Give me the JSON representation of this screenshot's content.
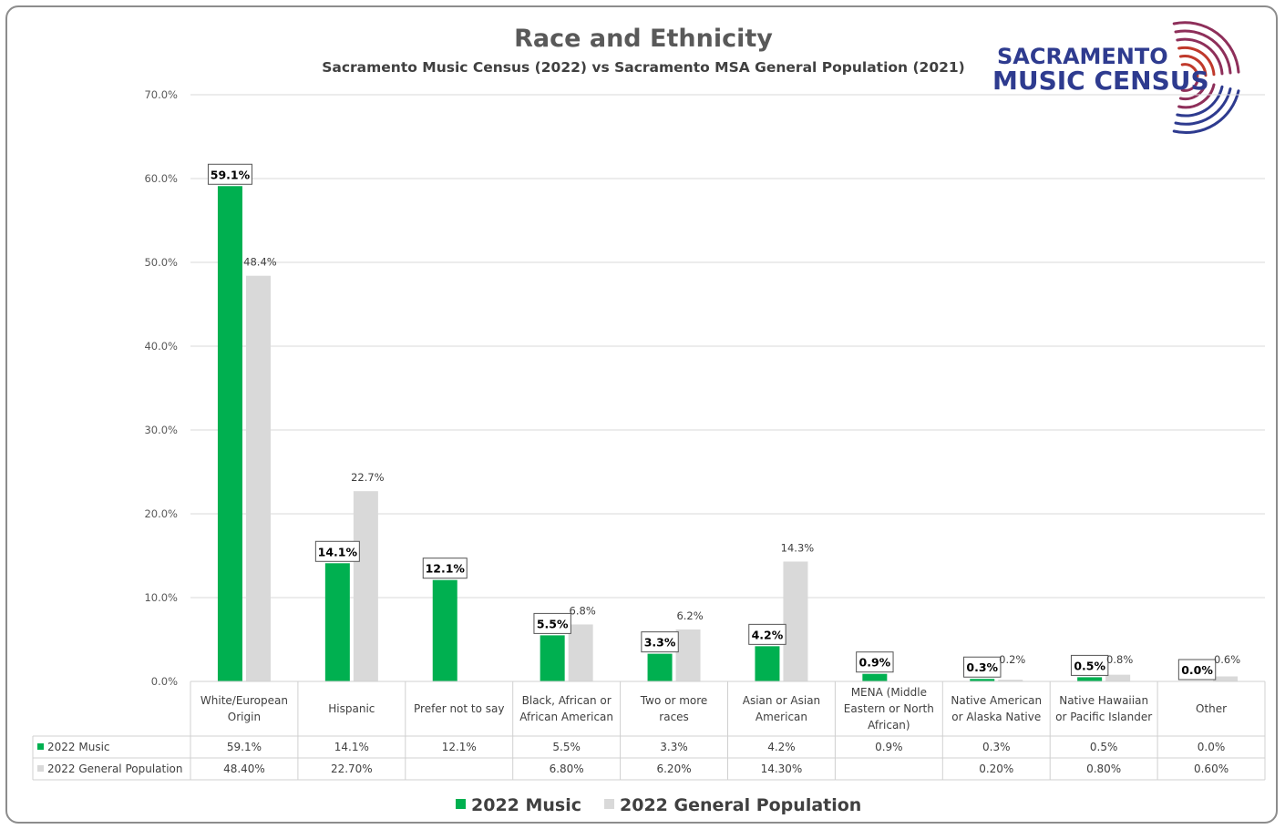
{
  "chart_data": {
    "type": "bar",
    "title": "Race and Ethnicity",
    "subtitle": "Sacramento Music Census (2022) vs Sacramento MSA General Population (2021)",
    "ylim": [
      0,
      70
    ],
    "yticks": [
      "0.0%",
      "10.0%",
      "20.0%",
      "30.0%",
      "40.0%",
      "50.0%",
      "60.0%",
      "70.0%"
    ],
    "grid": true,
    "legend_position": "bottom",
    "categories": [
      [
        "White/European",
        "Origin"
      ],
      [
        "Hispanic"
      ],
      [
        "Prefer not to say"
      ],
      [
        "Black, African or",
        "African American"
      ],
      [
        "Two or more",
        "races"
      ],
      [
        "Asian or Asian",
        "American"
      ],
      [
        "MENA (Middle",
        "Eastern or North",
        "African)"
      ],
      [
        "Native American",
        "or Alaska Native"
      ],
      [
        "Native Hawaiian",
        "or Pacific Islander"
      ],
      [
        "Other"
      ]
    ],
    "series": [
      {
        "name": "2022 Music",
        "color": "#00b050",
        "values": [
          59.1,
          14.1,
          12.1,
          5.5,
          3.3,
          4.2,
          0.9,
          0.3,
          0.5,
          0.0
        ],
        "labels": [
          "59.1%",
          "14.1%",
          "12.1%",
          "5.5%",
          "3.3%",
          "4.2%",
          "0.9%",
          "0.3%",
          "0.5%",
          "0.0%"
        ],
        "table": [
          "59.1%",
          "14.1%",
          "12.1%",
          "5.5%",
          "3.3%",
          "4.2%",
          "0.9%",
          "0.3%",
          "0.5%",
          "0.0%"
        ]
      },
      {
        "name": "2022 General Population",
        "color": "#d9d9d9",
        "values": [
          48.4,
          22.7,
          null,
          6.8,
          6.2,
          14.3,
          null,
          0.2,
          0.8,
          0.6
        ],
        "labels": [
          "48.4%",
          "22.7%",
          "",
          "6.8%",
          "6.2%",
          "14.3%",
          "",
          "0.2%",
          "0.8%",
          "0.6%"
        ],
        "table": [
          "48.40%",
          "22.70%",
          "",
          "6.80%",
          "6.20%",
          "14.30%",
          "",
          "0.20%",
          "0.80%",
          "0.60%"
        ]
      }
    ]
  },
  "logo": {
    "line1": "SACRAMENTO",
    "line2": "MUSIC CENSUS",
    "colors": [
      "#c0392b",
      "#2e3b8f"
    ]
  }
}
